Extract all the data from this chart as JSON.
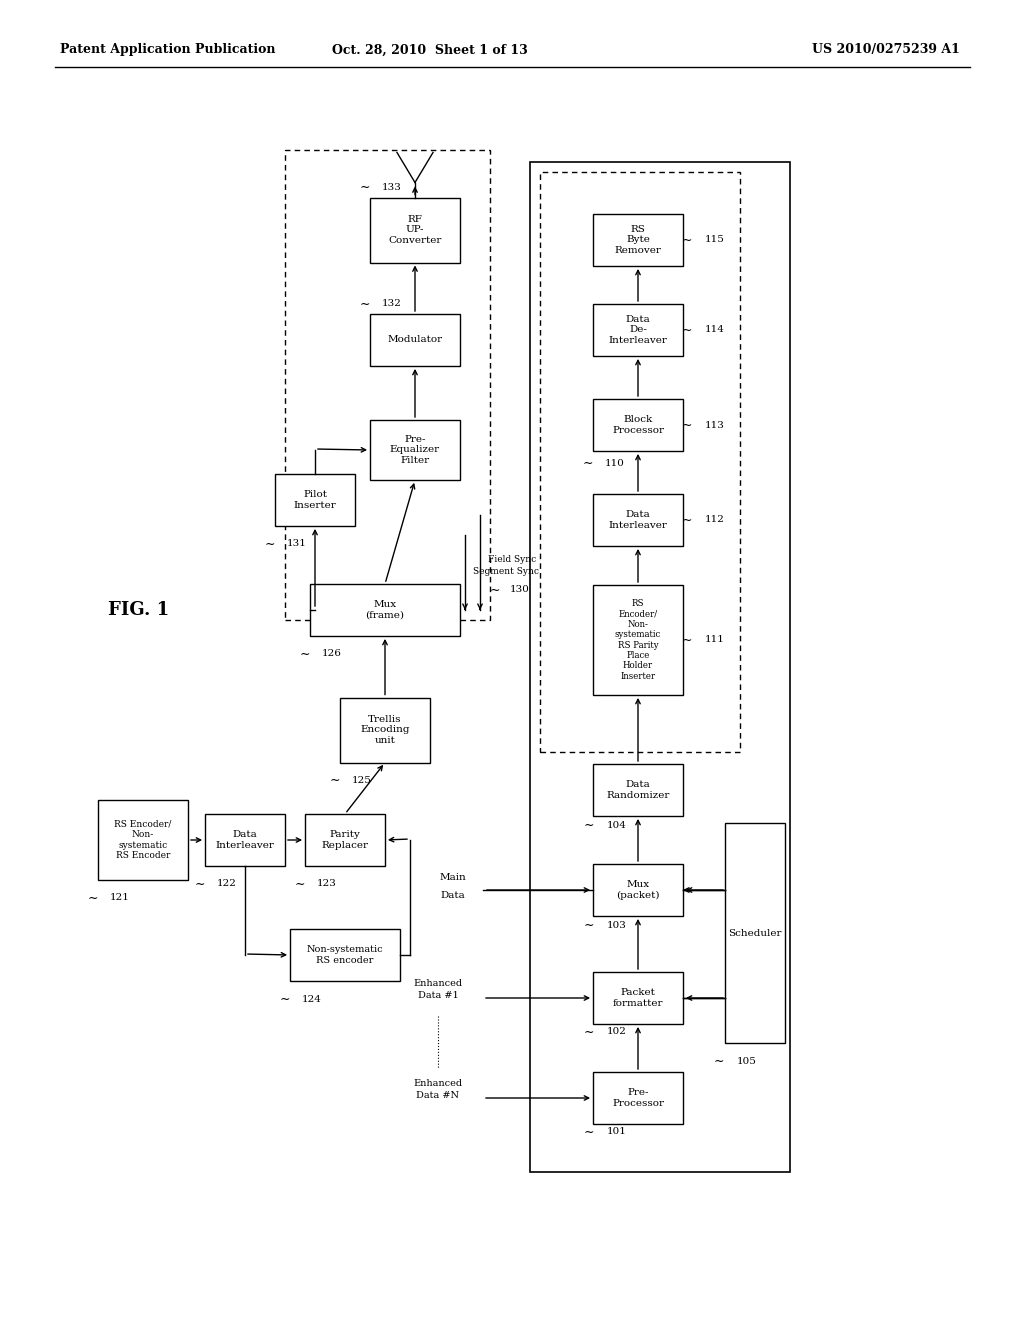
{
  "header_left": "Patent Application Publication",
  "header_mid": "Oct. 28, 2010  Sheet 1 of 13",
  "header_right": "US 2010/0275239 A1",
  "fig_label": "FIG. 1",
  "background": "#ffffff"
}
